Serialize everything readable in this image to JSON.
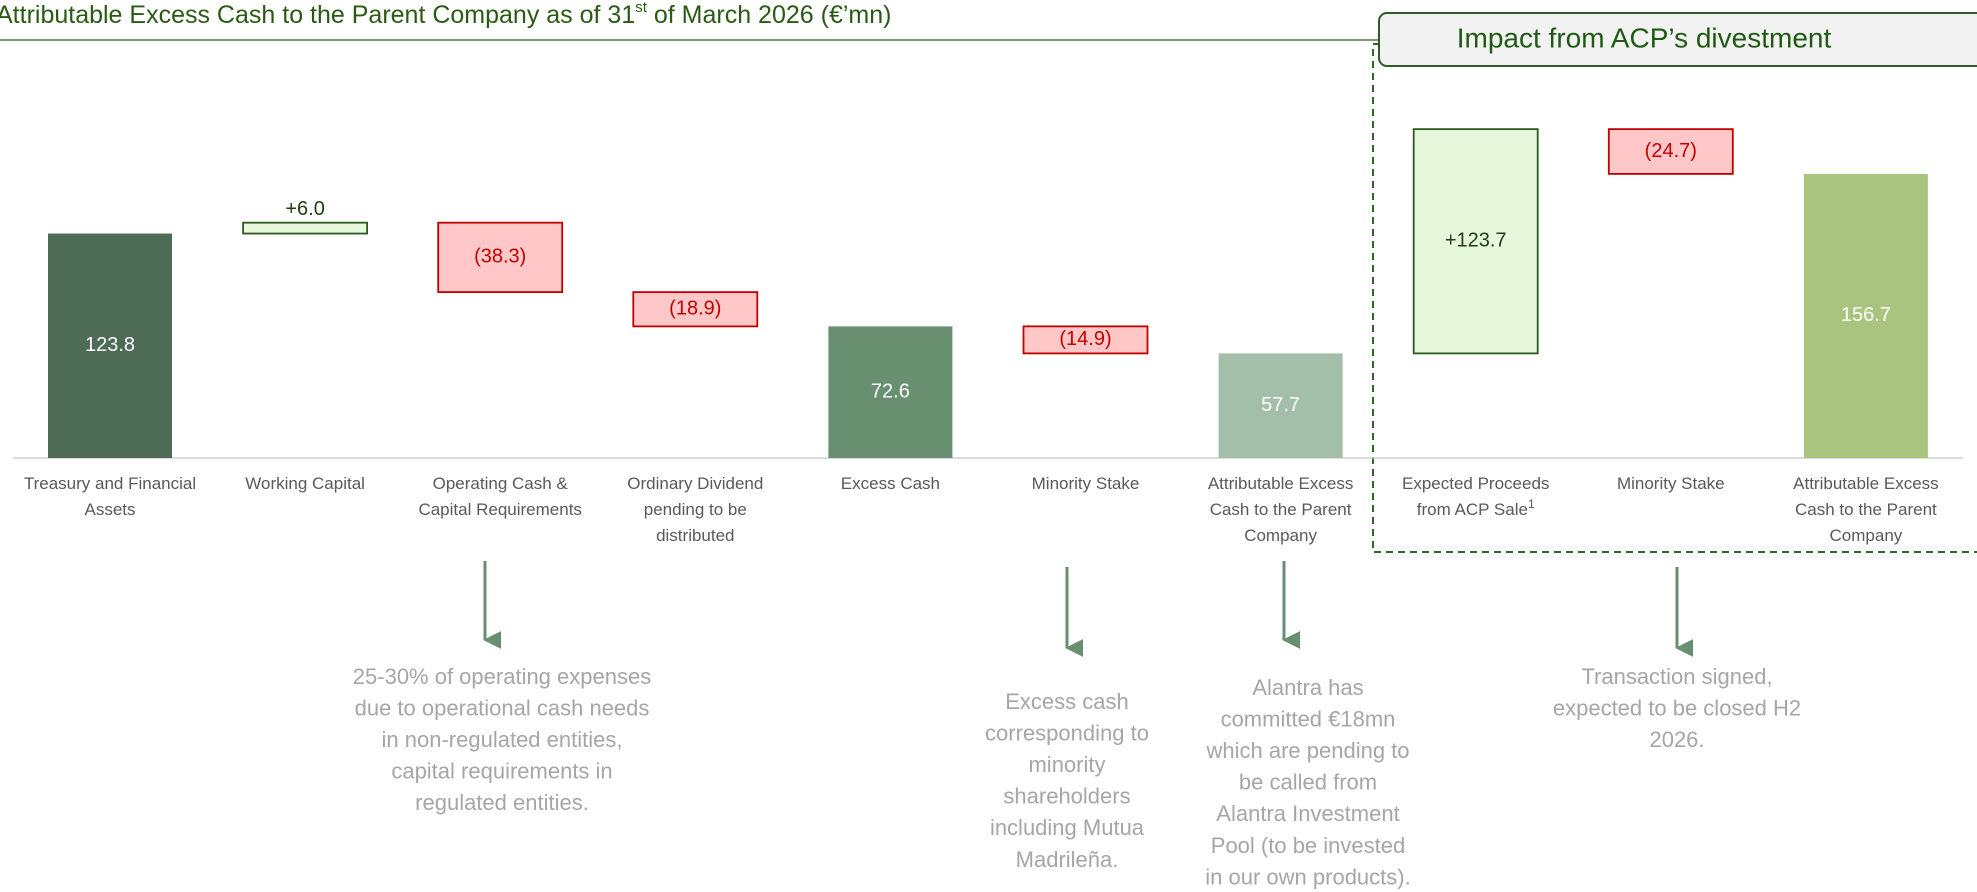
{
  "chart_data": {
    "type": "waterfall",
    "title": {
      "text": "Attributable Excess Cash to the Parent Company as of 31",
      "superscript": "st",
      "end": " of March 2026 (€’mn)"
    },
    "panel_title": "Impact from ACP’s divestment",
    "categories": [
      [
        "Treasury and Financial",
        "Assets"
      ],
      [
        "Working Capital"
      ],
      [
        "Operating Cash &",
        "Capital Requirements"
      ],
      [
        "Ordinary Dividend",
        "pending to be",
        "distributed"
      ],
      [
        "Excess Cash"
      ],
      [
        "Minority Stake"
      ],
      [
        "Attributable Excess",
        "Cash to the Parent",
        "Company"
      ],
      [
        "Expected Proceeds",
        "from ACP Sale"
      ],
      [
        "Minority Stake"
      ],
      [
        "Attributable Excess",
        "Cash to the Parent",
        "Company"
      ]
    ],
    "category_footnotes": [
      null,
      null,
      null,
      null,
      null,
      null,
      null,
      "1",
      null,
      null
    ],
    "measure": [
      "total",
      "relative",
      "relative",
      "relative",
      "total",
      "relative",
      "total",
      "relative",
      "relative",
      "total"
    ],
    "values": [
      123.8,
      6.0,
      -38.3,
      -18.9,
      72.6,
      -14.9,
      57.7,
      123.7,
      -24.7,
      156.7
    ],
    "value_labels": [
      "123.8",
      "+6.0",
      "(38.3)",
      "(18.9)",
      "72.6",
      "(14.9)",
      "57.7",
      "+123.7",
      "(24.7)",
      "156.7"
    ],
    "colors": [
      "#4e6b55",
      "#e6f7dc",
      "#ffc7c7",
      "#ffc7c7",
      "#678f70",
      "#ffc7c7",
      "#a3bea9",
      "#e6f7dc",
      "#ffc7c7",
      "#a9c47f"
    ],
    "increase_stroke": "#2f5a1e",
    "decrease_stroke": "#c00000",
    "total_label_color": "#ffffff",
    "increase_label_color": "#1e3d10",
    "decrease_label_color": "#c00000",
    "annotations": [
      [
        "25-30% of operating expenses",
        "due to operational cash needs",
        "in non-regulated entities,",
        "capital requirements in",
        "regulated entities."
      ],
      [
        "Excess cash",
        "corresponding to",
        "minority",
        "shareholders",
        "including Mutua",
        "Madrileña."
      ],
      [
        "Alantra has",
        "committed €18mn",
        "which are pending to",
        "be called from",
        "Alantra Investment",
        "Pool (to be invested",
        "in our own products)."
      ],
      [
        "Transaction signed,",
        "expected to be closed H2",
        "2026."
      ]
    ]
  }
}
